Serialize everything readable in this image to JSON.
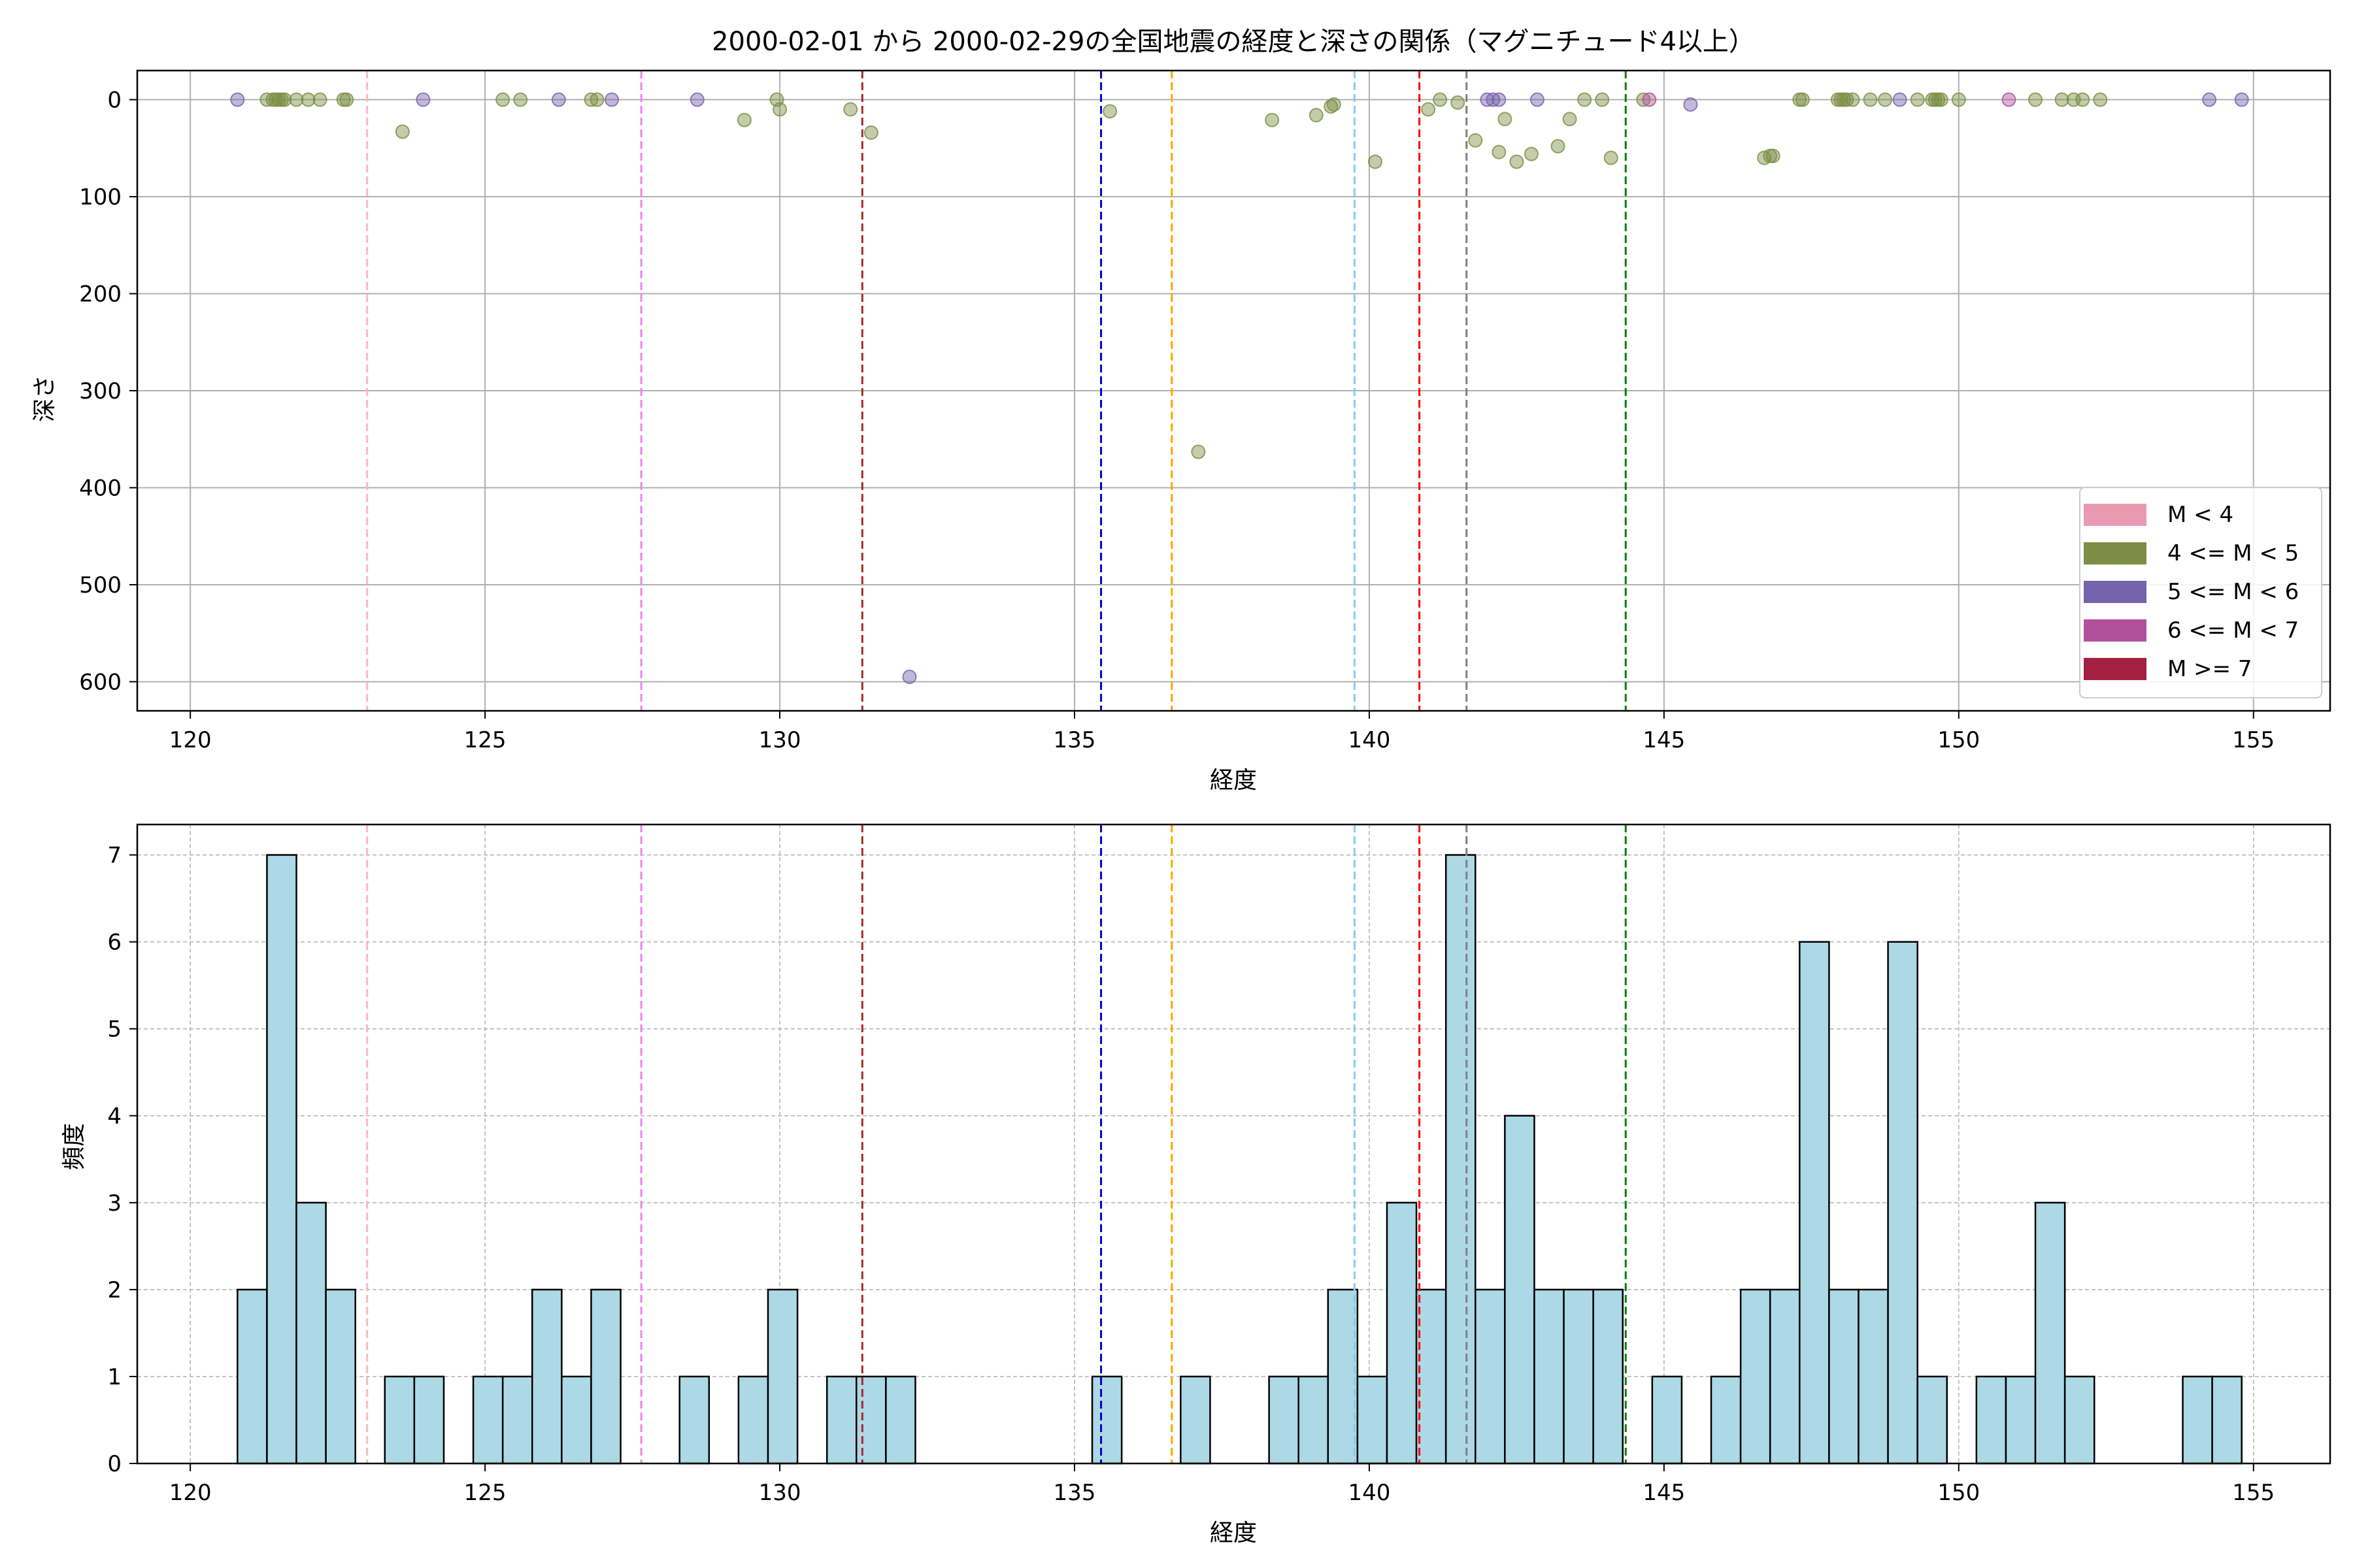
{
  "title": "2000-02-01 から 2000-02-29の全国地震の経度と深さの関係（マグニチュード4以上）",
  "legend": [
    {
      "label": "M < 4",
      "color": "#e89ab3"
    },
    {
      "label": "4 <= M < 5",
      "color": "#7d8d45"
    },
    {
      "label": "5 <= M < 6",
      "color": "#7563ab"
    },
    {
      "label": "6 <= M < 7",
      "color": "#b3509b"
    },
    {
      "label": "M >= 7",
      "color": "#a32040"
    }
  ],
  "chart_data": [
    {
      "type": "scatter",
      "xlabel": "経度",
      "ylabel": "深さ",
      "xlim": [
        119.1,
        156.3
      ],
      "ylim": [
        630,
        -30
      ],
      "y_inverted": true,
      "xticks": [
        120,
        125,
        130,
        135,
        140,
        145,
        150,
        155
      ],
      "yticks": [
        0,
        100,
        200,
        300,
        400,
        500,
        600
      ],
      "grid": true,
      "legend_position": "lower-right",
      "vlines": [
        {
          "x": 123.0,
          "color": "#ffb6c1"
        },
        {
          "x": 127.65,
          "color": "#ee82ee"
        },
        {
          "x": 131.4,
          "color": "#a52a2a"
        },
        {
          "x": 135.45,
          "color": "#0000cd"
        },
        {
          "x": 136.65,
          "color": "#ffa500"
        },
        {
          "x": 139.75,
          "color": "#87ceeb"
        },
        {
          "x": 140.85,
          "color": "#ff0000"
        },
        {
          "x": 141.65,
          "color": "#808080"
        },
        {
          "x": 144.35,
          "color": "#008000"
        }
      ],
      "series": [
        {
          "legend_index": 1,
          "points": [
            [
              121.3,
              0
            ],
            [
              121.4,
              0
            ],
            [
              121.45,
              0
            ],
            [
              121.5,
              0
            ],
            [
              121.55,
              0
            ],
            [
              121.6,
              0
            ],
            [
              121.8,
              0
            ],
            [
              122.0,
              0
            ],
            [
              122.2,
              0
            ],
            [
              122.6,
              0
            ],
            [
              122.65,
              0
            ],
            [
              123.6,
              33
            ],
            [
              125.3,
              0
            ],
            [
              125.6,
              0
            ],
            [
              126.8,
              0
            ],
            [
              126.9,
              0
            ],
            [
              129.4,
              21
            ],
            [
              129.95,
              0
            ],
            [
              130.0,
              10
            ],
            [
              131.2,
              10
            ],
            [
              131.55,
              34
            ],
            [
              135.6,
              12
            ],
            [
              137.1,
              363
            ],
            [
              138.35,
              21
            ],
            [
              139.1,
              16
            ],
            [
              139.35,
              7
            ],
            [
              139.4,
              5
            ],
            [
              140.1,
              64
            ],
            [
              141.0,
              10
            ],
            [
              141.2,
              0
            ],
            [
              141.5,
              3
            ],
            [
              141.8,
              42
            ],
            [
              142.2,
              54
            ],
            [
              142.3,
              20
            ],
            [
              142.5,
              64
            ],
            [
              142.75,
              56
            ],
            [
              143.2,
              48
            ],
            [
              143.4,
              20
            ],
            [
              143.65,
              0
            ],
            [
              143.95,
              0
            ],
            [
              144.1,
              60
            ],
            [
              144.65,
              0
            ],
            [
              146.7,
              60
            ],
            [
              146.8,
              58
            ],
            [
              146.85,
              58
            ],
            [
              147.3,
              0
            ],
            [
              147.35,
              0
            ],
            [
              147.95,
              0
            ],
            [
              148.0,
              0
            ],
            [
              148.05,
              0
            ],
            [
              148.1,
              0
            ],
            [
              148.2,
              0
            ],
            [
              148.5,
              0
            ],
            [
              148.75,
              0
            ],
            [
              149.3,
              0
            ],
            [
              149.55,
              0
            ],
            [
              149.6,
              0
            ],
            [
              149.65,
              0
            ],
            [
              149.7,
              0
            ],
            [
              150.0,
              0
            ],
            [
              151.3,
              0
            ],
            [
              151.75,
              0
            ],
            [
              151.95,
              0
            ],
            [
              152.1,
              0
            ],
            [
              152.4,
              0
            ]
          ]
        },
        {
          "legend_index": 2,
          "points": [
            [
              120.8,
              0
            ],
            [
              123.95,
              0
            ],
            [
              126.25,
              0
            ],
            [
              127.15,
              0
            ],
            [
              128.6,
              0
            ],
            [
              132.2,
              595
            ],
            [
              142.0,
              0
            ],
            [
              142.1,
              0
            ],
            [
              142.2,
              0
            ],
            [
              142.85,
              0
            ],
            [
              145.45,
              5
            ],
            [
              149.0,
              0
            ],
            [
              154.25,
              0
            ],
            [
              154.8,
              0
            ]
          ]
        },
        {
          "legend_index": 3,
          "points": [
            [
              144.75,
              0
            ],
            [
              150.85,
              0
            ]
          ]
        }
      ]
    },
    {
      "type": "bar",
      "subtype": "histogram",
      "xlabel": "経度",
      "ylabel": "頻度",
      "xlim": [
        119.1,
        156.3
      ],
      "ylim": [
        0,
        7.35
      ],
      "xticks": [
        120,
        125,
        130,
        135,
        140,
        145,
        150,
        155
      ],
      "yticks": [
        0,
        1,
        2,
        3,
        4,
        5,
        6,
        7
      ],
      "grid": true,
      "bar_color": "#add8e6",
      "bin_start": 120.8,
      "bin_width": 0.5,
      "counts": [
        2,
        7,
        3,
        2,
        0,
        1,
        1,
        0,
        1,
        1,
        2,
        1,
        2,
        0,
        0,
        1,
        0,
        1,
        2,
        0,
        1,
        1,
        1,
        0,
        0,
        0,
        0,
        0,
        0,
        1,
        0,
        0,
        1,
        0,
        0,
        1,
        1,
        2,
        1,
        3,
        2,
        7,
        2,
        4,
        2,
        2,
        2,
        0,
        1,
        0,
        1,
        2,
        2,
        6,
        2,
        2,
        6,
        1,
        0,
        1,
        1,
        3,
        1,
        0,
        0,
        0,
        1,
        1
      ],
      "vlines": [
        {
          "x": 123.0,
          "color": "#ffb6c1"
        },
        {
          "x": 127.65,
          "color": "#ee82ee"
        },
        {
          "x": 131.4,
          "color": "#a52a2a"
        },
        {
          "x": 135.45,
          "color": "#0000cd"
        },
        {
          "x": 136.65,
          "color": "#ffa500"
        },
        {
          "x": 139.75,
          "color": "#87ceeb"
        },
        {
          "x": 140.85,
          "color": "#ff0000"
        },
        {
          "x": 141.65,
          "color": "#808080"
        },
        {
          "x": 144.35,
          "color": "#008000"
        }
      ]
    }
  ]
}
